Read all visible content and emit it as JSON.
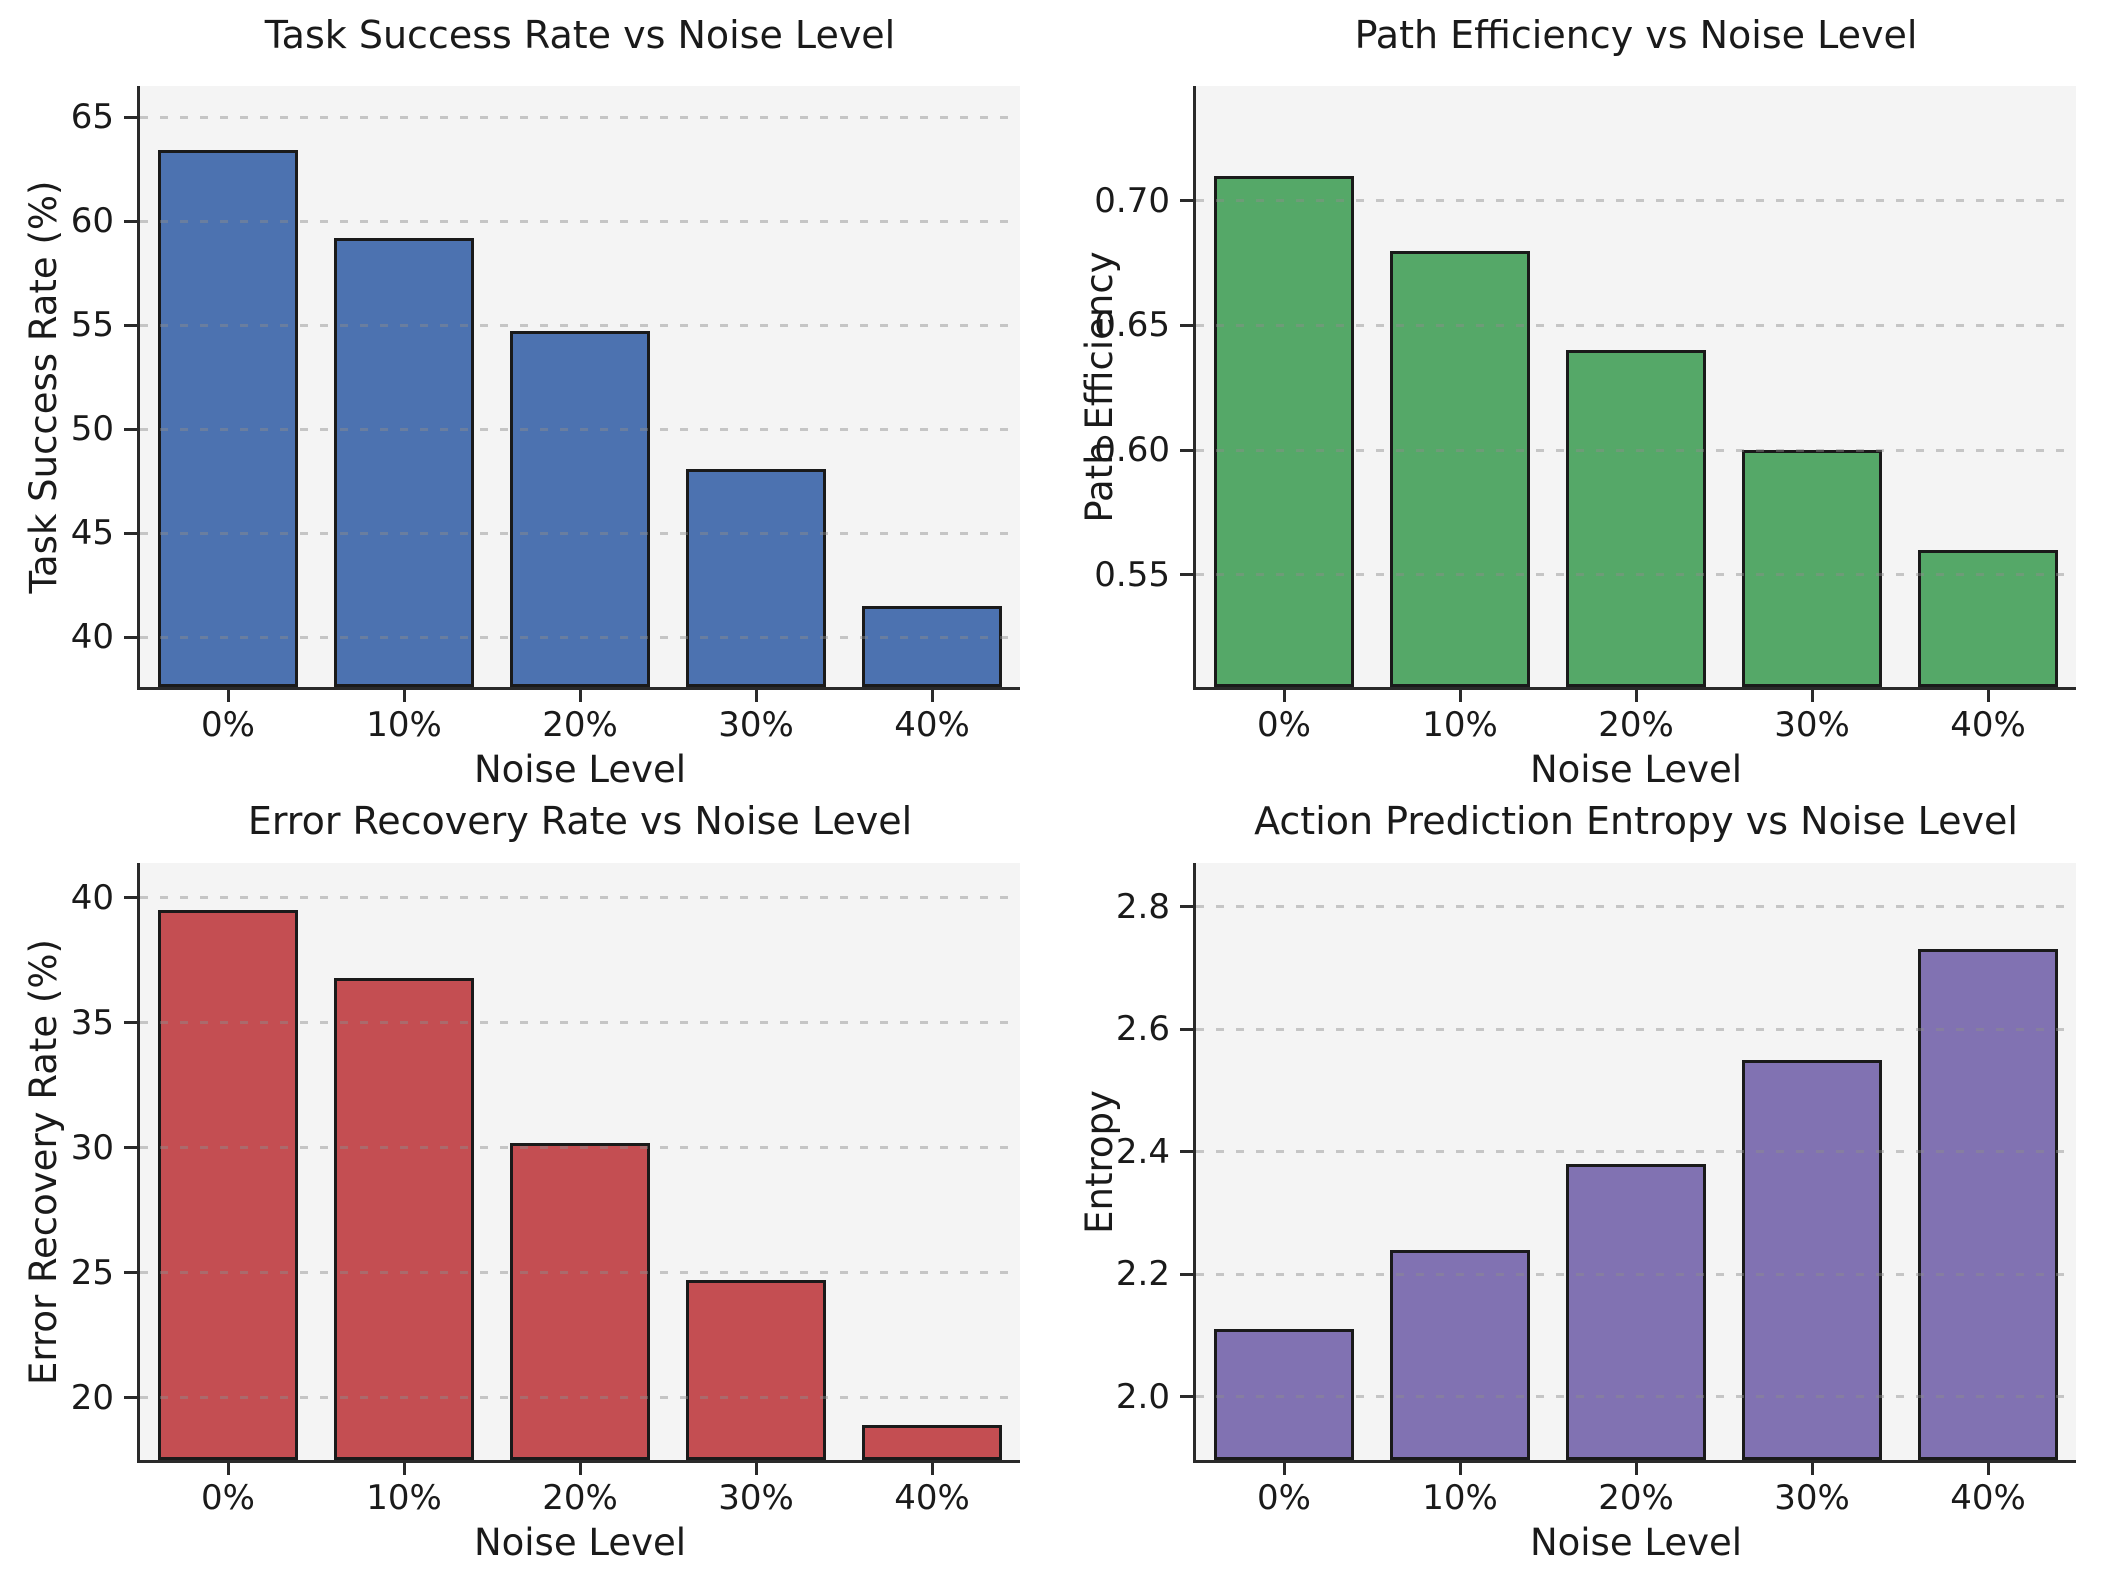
{
  "figure": {
    "background": "#ffffff",
    "plot_background": "#f4f4f4",
    "spine_color": "#2a2a2a",
    "grid_style": "horizontal-dashed",
    "text_color": "#1a1a1a",
    "layout": "2x2 grid of bar charts"
  },
  "chart_data": [
    {
      "type": "bar",
      "title": "Task Success Rate vs Noise Level",
      "xlabel": "Noise Level",
      "ylabel": "Task Success Rate (%)",
      "categories": [
        "0%",
        "10%",
        "20%",
        "30%",
        "40%"
      ],
      "values": [
        63.4,
        59.2,
        54.7,
        48.1,
        41.5
      ],
      "yticks": [
        40,
        45,
        50,
        55,
        60,
        65
      ],
      "ytick_labels": [
        "40",
        "45",
        "50",
        "55",
        "60",
        "65"
      ],
      "ylim": [
        37.6,
        66.5
      ],
      "bar_color": "#4C72B0",
      "bar_edge_color": "#1a1a1a",
      "grid": true,
      "legend": "none"
    },
    {
      "type": "bar",
      "title": "Path Efficiency vs Noise Level",
      "xlabel": "Noise Level",
      "ylabel": "Path Efficiency",
      "categories": [
        "0%",
        "10%",
        "20%",
        "30%",
        "40%"
      ],
      "values": [
        0.71,
        0.68,
        0.64,
        0.6,
        0.56
      ],
      "yticks": [
        0.55,
        0.6,
        0.65,
        0.7
      ],
      "ytick_labels": [
        "0.55",
        "0.60",
        "0.65",
        "0.70"
      ],
      "ylim": [
        0.505,
        0.746
      ],
      "bar_color": "#55A868",
      "bar_edge_color": "#1a1a1a",
      "grid": true,
      "legend": "none"
    },
    {
      "type": "bar",
      "title": "Error Recovery Rate vs Noise Level",
      "xlabel": "Noise Level",
      "ylabel": "Error Recovery Rate (%)",
      "categories": [
        "0%",
        "10%",
        "20%",
        "30%",
        "40%"
      ],
      "values": [
        39.5,
        36.8,
        30.2,
        24.7,
        18.9
      ],
      "yticks": [
        20,
        25,
        30,
        35,
        40
      ],
      "ytick_labels": [
        "20",
        "25",
        "30",
        "35",
        "40"
      ],
      "ylim": [
        17.5,
        41.4
      ],
      "bar_color": "#C44E52",
      "bar_edge_color": "#1a1a1a",
      "grid": true,
      "legend": "none"
    },
    {
      "type": "bar",
      "title": "Action Prediction Entropy vs Noise Level",
      "xlabel": "Noise Level",
      "ylabel": "Entropy",
      "categories": [
        "0%",
        "10%",
        "20%",
        "30%",
        "40%"
      ],
      "values": [
        2.11,
        2.24,
        2.38,
        2.55,
        2.73
      ],
      "yticks": [
        2.0,
        2.2,
        2.4,
        2.6,
        2.8
      ],
      "ytick_labels": [
        "2.0",
        "2.2",
        "2.4",
        "2.6",
        "2.8"
      ],
      "ylim": [
        1.897,
        2.871
      ],
      "bar_color": "#8172B2",
      "bar_edge_color": "#1a1a1a",
      "grid": true,
      "legend": "none"
    }
  ]
}
